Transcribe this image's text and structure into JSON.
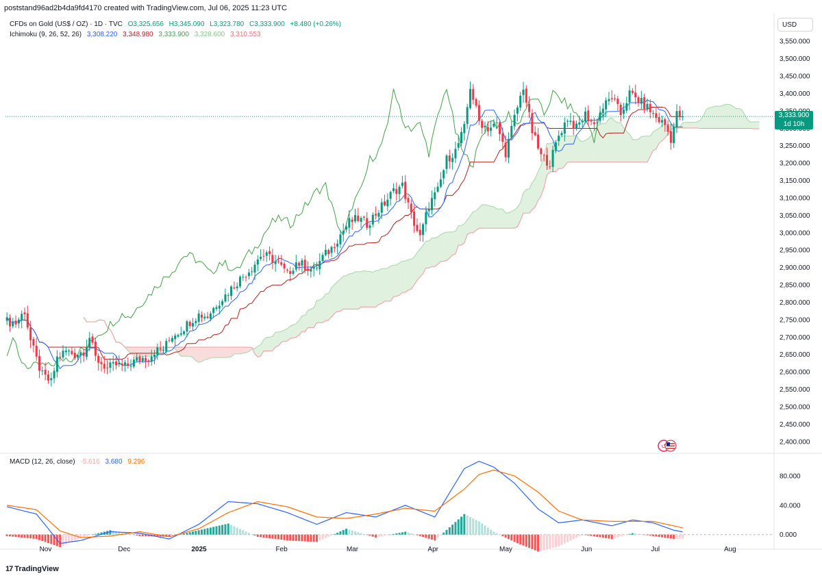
{
  "header": {
    "text": "poststand96ad2b4da9fd4170 created with TradingView.com, Jul 06, 2025 11:23 UTC"
  },
  "legend": {
    "symbol_title": "CFDs on Gold (US$ / OZ) · 1D · TVC",
    "o": "O3,325.656",
    "h": "H3,345.090",
    "l": "L3,323.780",
    "c": "C3,333.900",
    "change": "+8.480 (+0.26%)",
    "ichimoku_label": "Ichimoku (9, 26, 52, 26)",
    "ichimoku_values": [
      "3,308.220",
      "3,348.980",
      "3,333.900",
      "3,328.600",
      "3,310.553"
    ]
  },
  "currency": "USD",
  "price_tag": {
    "price": "3,333.900",
    "countdown": "1d 10h"
  },
  "macd_legend": {
    "label": "MACD (12, 26, close)",
    "values": [
      "-5.616",
      "3.680",
      "9.296"
    ]
  },
  "footer": {
    "brand": "TradingView",
    "logo": "17"
  },
  "colors": {
    "up": "#089981",
    "down": "#f23645",
    "tenkan": "#2962ff",
    "kijun": "#b71c1c",
    "chikou": "#43a047",
    "spanA": "#a5d6a7",
    "spanB": "#ef9a9a",
    "macd": "#2962ff",
    "signal": "#ff6d00"
  },
  "chart_data": [
    {
      "type": "candlestick",
      "title": "CFDs on Gold (US$ / OZ) · 1D · TVC",
      "y_axis": {
        "ticks": [
          "3,550.000",
          "3,500.000",
          "3,450.000",
          "3,400.000",
          "3,350.000",
          "3,300.000",
          "3,250.000",
          "3,200.000",
          "3,150.000",
          "3,100.000",
          "3,050.000",
          "3,000.000",
          "2,950.000",
          "2,900.000",
          "2,850.000",
          "2,800.000",
          "2,750.000",
          "2,700.000",
          "2,650.000",
          "2,600.000",
          "2,550.000",
          "2,500.000",
          "2,450.000",
          "2,400.000"
        ],
        "range": [
          2370,
          3580
        ],
        "position": "right"
      },
      "x_axis": {
        "ticks": [
          "Nov",
          "Dec",
          "2025",
          "Feb",
          "Mar",
          "Apr",
          "May",
          "Jun",
          "Jul",
          "Aug"
        ]
      },
      "close_path": [
        [
          0,
          2745
        ],
        [
          3,
          2740
        ],
        [
          6,
          2775
        ],
        [
          8,
          2690
        ],
        [
          10,
          2635
        ],
        [
          12,
          2590
        ],
        [
          15,
          2570
        ],
        [
          17,
          2640
        ],
        [
          20,
          2660
        ],
        [
          23,
          2650
        ],
        [
          26,
          2660
        ],
        [
          28,
          2700
        ],
        [
          30,
          2640
        ],
        [
          32,
          2625
        ],
        [
          34,
          2610
        ],
        [
          37,
          2620
        ],
        [
          40,
          2615
        ],
        [
          43,
          2630
        ],
        [
          46,
          2640
        ],
        [
          48,
          2640
        ],
        [
          50,
          2660
        ],
        [
          53,
          2665
        ],
        [
          56,
          2705
        ],
        [
          59,
          2720
        ],
        [
          62,
          2745
        ],
        [
          65,
          2765
        ],
        [
          68,
          2760
        ],
        [
          71,
          2795
        ],
        [
          74,
          2820
        ],
        [
          77,
          2850
        ],
        [
          80,
          2875
        ],
        [
          83,
          2900
        ],
        [
          86,
          2935
        ],
        [
          89,
          2930
        ],
        [
          92,
          2910
        ],
        [
          95,
          2880
        ],
        [
          98,
          2915
        ],
        [
          101,
          2905
        ],
        [
          104,
          2890
        ],
        [
          107,
          2930
        ],
        [
          110,
          2955
        ],
        [
          113,
          2995
        ],
        [
          116,
          3030
        ],
        [
          119,
          3040
        ],
        [
          122,
          3025
        ],
        [
          125,
          3055
        ],
        [
          128,
          3085
        ],
        [
          131,
          3120
        ],
        [
          134,
          3135
        ],
        [
          137,
          3050
        ],
        [
          140,
          2985
        ],
        [
          143,
          3080
        ],
        [
          146,
          3120
        ],
        [
          149,
          3210
        ],
        [
          152,
          3235
        ],
        [
          155,
          3300
        ],
        [
          157,
          3420
        ],
        [
          160,
          3320
        ],
        [
          163,
          3300
        ],
        [
          166,
          3310
        ],
        [
          169,
          3230
        ],
        [
          172,
          3330
        ],
        [
          175,
          3420
        ],
        [
          178,
          3290
        ],
        [
          181,
          3220
        ],
        [
          184,
          3200
        ],
        [
          187,
          3280
        ],
        [
          190,
          3330
        ],
        [
          193,
          3300
        ],
        [
          196,
          3340
        ],
        [
          199,
          3310
        ],
        [
          202,
          3360
        ],
        [
          205,
          3390
        ],
        [
          208,
          3340
        ],
        [
          211,
          3400
        ],
        [
          214,
          3380
        ],
        [
          217,
          3360
        ],
        [
          220,
          3330
        ],
        [
          223,
          3310
        ],
        [
          225,
          3270
        ],
        [
          227,
          3340
        ],
        [
          229,
          3333.9
        ]
      ],
      "ichimoku": {
        "tenkan": "3,308.220",
        "kijun": "3,348.980",
        "chikou": "3,333.900",
        "span_a": "3,328.600",
        "span_b": "3,310.553"
      }
    },
    {
      "type": "bar",
      "title": "MACD (12, 26, close)",
      "y_axis": {
        "ticks": [
          "80.000",
          "40.000",
          "0.000"
        ],
        "range": [
          -18,
          108
        ]
      },
      "series": [
        {
          "name": "Histogram",
          "values": [
            -5.616
          ]
        },
        {
          "name": "MACD",
          "values": [
            3.68
          ]
        },
        {
          "name": "Signal",
          "values": [
            9.296
          ]
        }
      ],
      "macd_path": [
        [
          0,
          38
        ],
        [
          10,
          28
        ],
        [
          18,
          -12
        ],
        [
          25,
          -8
        ],
        [
          35,
          4
        ],
        [
          45,
          2
        ],
        [
          55,
          -6
        ],
        [
          65,
          14
        ],
        [
          75,
          45
        ],
        [
          85,
          42
        ],
        [
          95,
          30
        ],
        [
          105,
          14
        ],
        [
          115,
          30
        ],
        [
          125,
          24
        ],
        [
          135,
          40
        ],
        [
          145,
          24
        ],
        [
          155,
          90
        ],
        [
          160,
          100
        ],
        [
          165,
          92
        ],
        [
          172,
          70
        ],
        [
          180,
          35
        ],
        [
          187,
          16
        ],
        [
          195,
          20
        ],
        [
          205,
          12
        ],
        [
          212,
          20
        ],
        [
          219,
          16
        ],
        [
          226,
          6
        ],
        [
          229,
          3.68
        ]
      ],
      "signal_path": [
        [
          0,
          40
        ],
        [
          10,
          34
        ],
        [
          18,
          5
        ],
        [
          25,
          -4
        ],
        [
          35,
          -2
        ],
        [
          45,
          4
        ],
        [
          55,
          -3
        ],
        [
          65,
          8
        ],
        [
          75,
          30
        ],
        [
          85,
          45
        ],
        [
          95,
          38
        ],
        [
          105,
          24
        ],
        [
          115,
          22
        ],
        [
          125,
          28
        ],
        [
          135,
          36
        ],
        [
          145,
          32
        ],
        [
          155,
          62
        ],
        [
          160,
          82
        ],
        [
          165,
          88
        ],
        [
          172,
          80
        ],
        [
          180,
          58
        ],
        [
          187,
          32
        ],
        [
          195,
          20
        ],
        [
          205,
          18
        ],
        [
          212,
          18
        ],
        [
          219,
          18
        ],
        [
          226,
          12
        ],
        [
          229,
          9.296
        ]
      ]
    }
  ]
}
